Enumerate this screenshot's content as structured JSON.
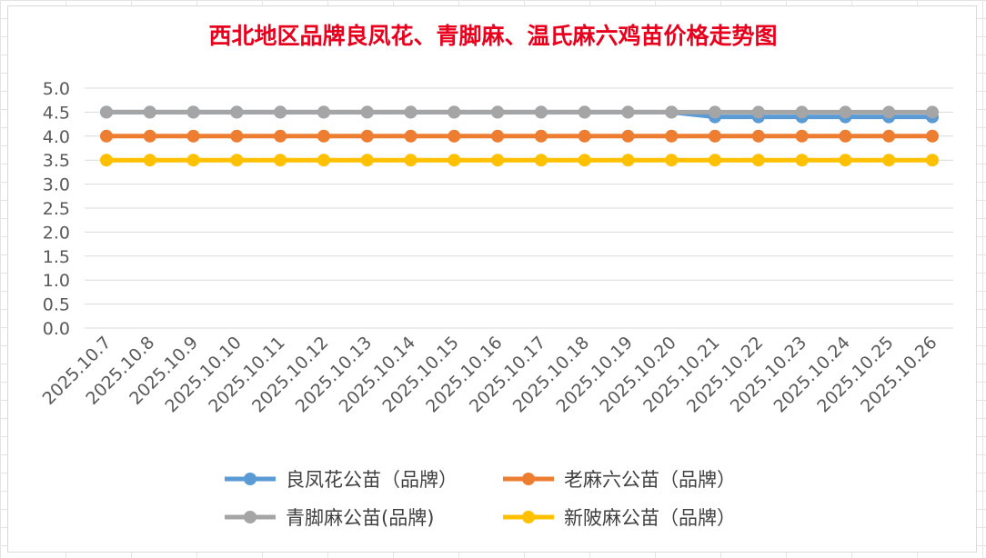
{
  "chart_data": {
    "type": "line",
    "title": "西北地区品牌良凤花、青脚麻、温氏麻六鸡苗价格走势图",
    "xlabel": "",
    "ylabel": "",
    "ylim": [
      0,
      5
    ],
    "yticks": [
      "0.0",
      "0.5",
      "1.0",
      "1.5",
      "2.0",
      "2.5",
      "3.0",
      "3.5",
      "4.0",
      "4.5",
      "5.0"
    ],
    "grid": true,
    "legend_position": "bottom",
    "categories": [
      "2025.10.7",
      "2025.10.8",
      "2025.10.9",
      "2025.10.10",
      "2025.10.11",
      "2025.10.12",
      "2025.10.13",
      "2025.10.14",
      "2025.10.15",
      "2025.10.16",
      "2025.10.17",
      "2025.10.18",
      "2025.10.19",
      "2025.10.20",
      "2025.10.21",
      "2025.10.22",
      "2025.10.23",
      "2025.10.24",
      "2025.10.25",
      "2025.10.26"
    ],
    "series": [
      {
        "name": "良凤花公苗（品牌）",
        "color": "#5b9bd5",
        "values": [
          4.5,
          4.5,
          4.5,
          4.5,
          4.5,
          4.5,
          4.5,
          4.5,
          4.5,
          4.5,
          4.5,
          4.5,
          4.5,
          4.5,
          4.4,
          4.4,
          4.4,
          4.4,
          4.4,
          4.4
        ]
      },
      {
        "name": "老麻六公苗（品牌）",
        "color": "#ed7d31",
        "values": [
          4.0,
          4.0,
          4.0,
          4.0,
          4.0,
          4.0,
          4.0,
          4.0,
          4.0,
          4.0,
          4.0,
          4.0,
          4.0,
          4.0,
          4.0,
          4.0,
          4.0,
          4.0,
          4.0,
          4.0
        ]
      },
      {
        "name": "青脚麻公苗(品牌)",
        "color": "#a5a5a5",
        "values": [
          4.5,
          4.5,
          4.5,
          4.5,
          4.5,
          4.5,
          4.5,
          4.5,
          4.5,
          4.5,
          4.5,
          4.5,
          4.5,
          4.5,
          4.5,
          4.5,
          4.5,
          4.5,
          4.5,
          4.5
        ]
      },
      {
        "name": "新陂麻公苗（品牌）",
        "color": "#ffc000",
        "values": [
          3.5,
          3.5,
          3.5,
          3.5,
          3.5,
          3.5,
          3.5,
          3.5,
          3.5,
          3.5,
          3.5,
          3.5,
          3.5,
          3.5,
          3.5,
          3.5,
          3.5,
          3.5,
          3.5,
          3.5
        ]
      }
    ]
  }
}
